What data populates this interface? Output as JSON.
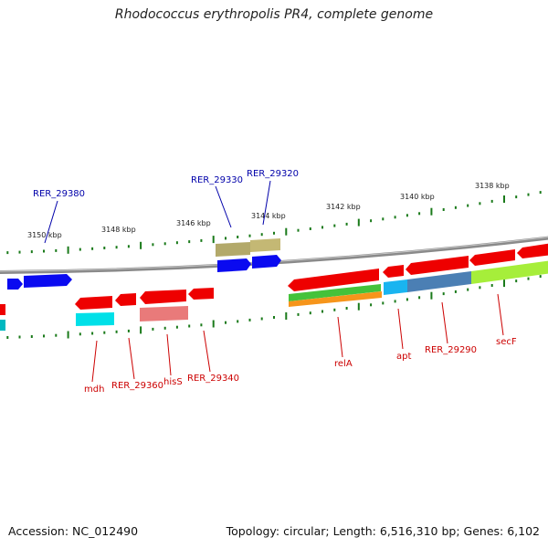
{
  "title": "Rhodococcus erythropolis PR4, complete genome",
  "footer": {
    "accession_label": "Accession: NC_012490",
    "topology_label": "Topology: circular; Length: 6,516,310 bp; Genes: 6,102"
  },
  "colors": {
    "backbone": "#8a8a8a",
    "tick": "#1a7a1a",
    "forward_label": "#0000aa",
    "reverse_label": "#cc0000",
    "red": "#ee0000",
    "blue": "#0a0af0",
    "olive": "#b3a96a",
    "cyan": "#00e0e8",
    "salmon": "#e97a7a",
    "green": "#44c23a",
    "orange": "#f6951b",
    "skyblue": "#19b4f0",
    "steelblue": "#4b7fb4",
    "lime": "#a6ee3a"
  },
  "scale": {
    "unit": "kbp",
    "labels": [
      "3150 kbp",
      "3148 kbp",
      "3146 kbp",
      "3144 kbp",
      "3142 kbp",
      "3140 kbp",
      "3138 kbp"
    ]
  },
  "genes_forward": [
    {
      "name": "RER_29380",
      "color": "blue"
    },
    {
      "name": "RER_29330",
      "color": "blue"
    },
    {
      "name": "RER_29320",
      "color": "olive"
    }
  ],
  "genes_reverse": [
    {
      "name": "mdh",
      "color": "red"
    },
    {
      "name": "RER_29360",
      "color": "red"
    },
    {
      "name": "hisS",
      "color": "red"
    },
    {
      "name": "RER_29340",
      "color": "red"
    },
    {
      "name": "relA",
      "color": "red"
    },
    {
      "name": "apt",
      "color": "red"
    },
    {
      "name": "RER_29290",
      "color": "red"
    },
    {
      "name": "secF",
      "color": "red"
    }
  ]
}
